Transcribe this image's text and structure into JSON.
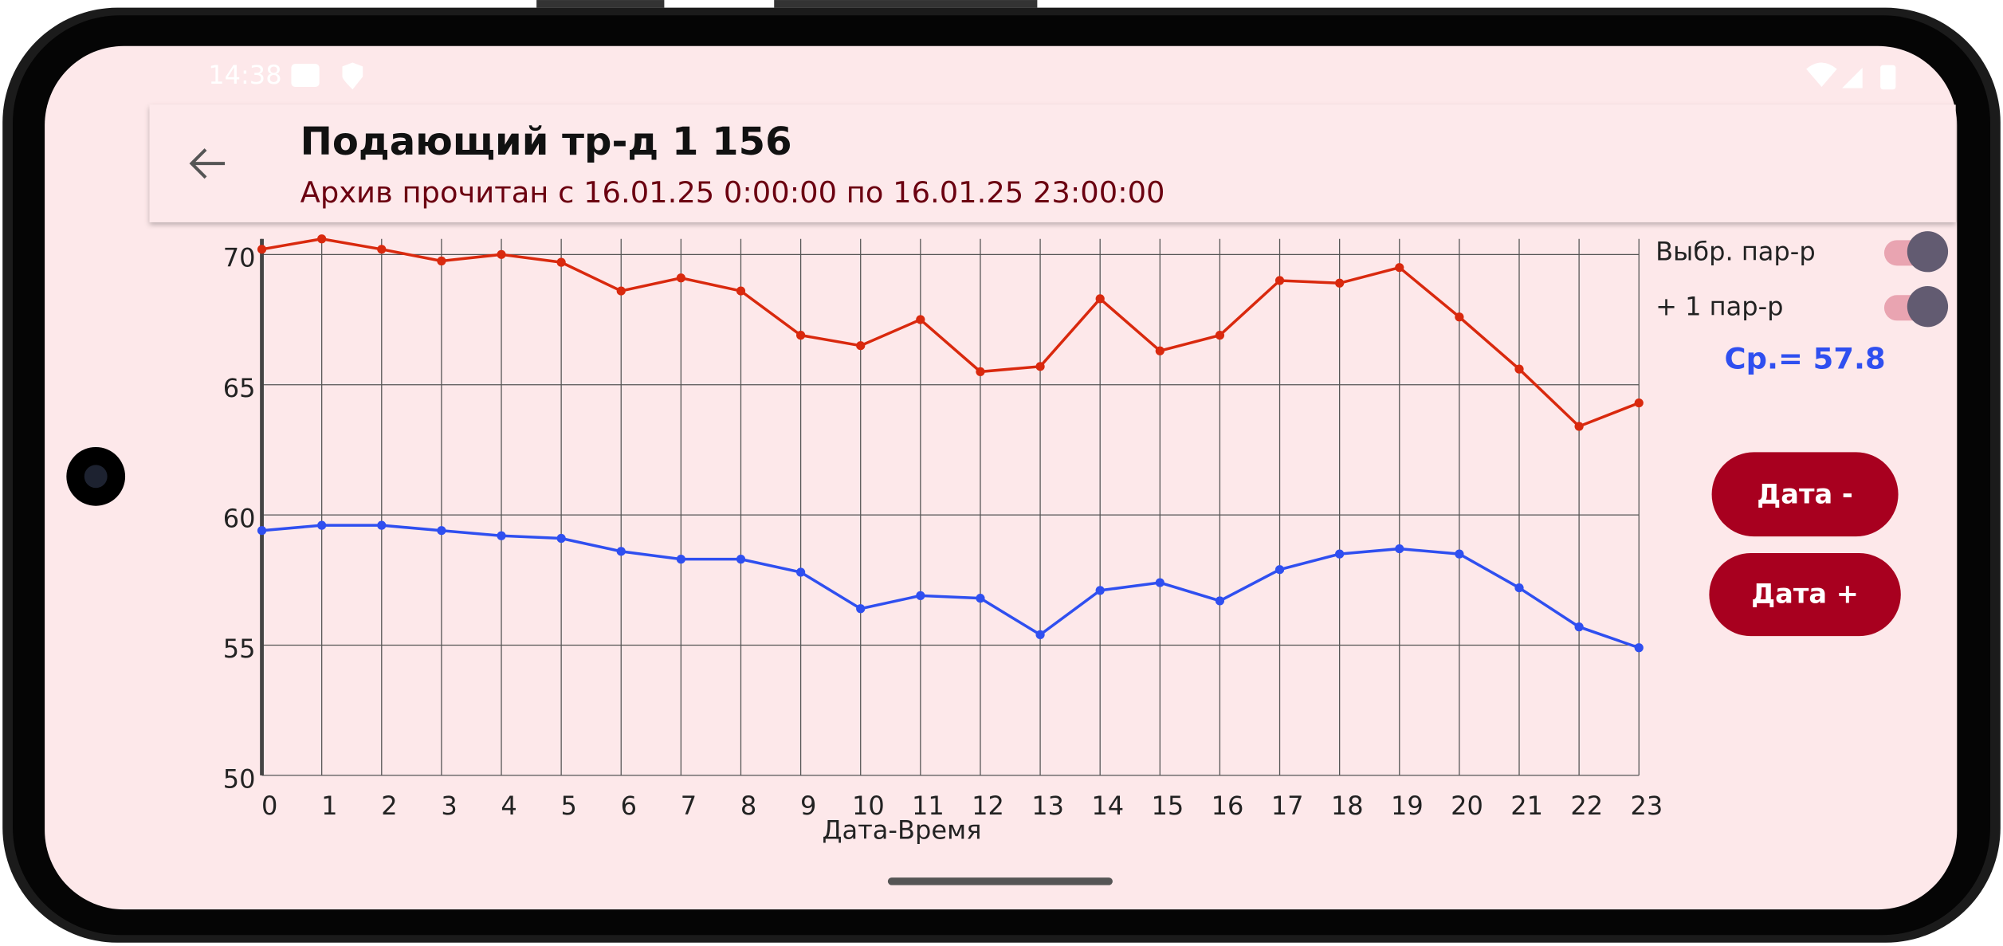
{
  "status_bar": {
    "time": "14:38"
  },
  "header": {
    "title": "Подающий тр-д 1 156",
    "subtitle": "Архив прочитан с 16.01.25  0:00:00 по 16.01.25 23:00:00"
  },
  "average": "Ср.= 57.8",
  "buttons": [
    "Дата -",
    "Дата +"
  ],
  "chart_data": {
    "type": "line",
    "xlabel": "Дата-Время",
    "x": [
      0,
      1,
      2,
      3,
      4,
      5,
      6,
      7,
      8,
      9,
      10,
      11,
      12,
      13,
      14,
      15,
      16,
      17,
      18,
      19,
      20,
      21,
      22,
      23
    ],
    "xlim": [
      0,
      23
    ],
    "xticks": [
      0,
      1,
      2,
      3,
      4,
      5,
      6,
      7,
      8,
      9,
      10,
      11,
      12,
      13,
      14,
      15,
      16,
      17,
      18,
      19,
      20,
      21,
      22,
      23
    ],
    "ylim": [
      50,
      70.6
    ],
    "yticks": [
      50,
      55,
      60,
      65,
      70
    ],
    "grid": true,
    "series": [
      {
        "name": "Выбр. пар-р",
        "color": "#d9290e",
        "values": [
          70.2,
          70.6,
          70.2,
          69.75,
          70.0,
          69.7,
          68.6,
          69.1,
          68.6,
          66.9,
          66.5,
          67.5,
          65.5,
          65.7,
          68.3,
          66.3,
          66.9,
          69.0,
          68.9,
          69.5,
          67.6,
          65.6,
          63.4,
          64.3
        ]
      },
      {
        "name": "+ 1 пар-р",
        "color": "#2f4ff0",
        "values": [
          59.4,
          59.6,
          59.6,
          59.4,
          59.2,
          59.1,
          58.6,
          58.3,
          58.3,
          57.8,
          56.4,
          56.9,
          56.8,
          55.4,
          57.1,
          57.4,
          56.7,
          57.9,
          58.5,
          58.7,
          58.5,
          57.2,
          55.7,
          54.9
        ]
      }
    ]
  }
}
